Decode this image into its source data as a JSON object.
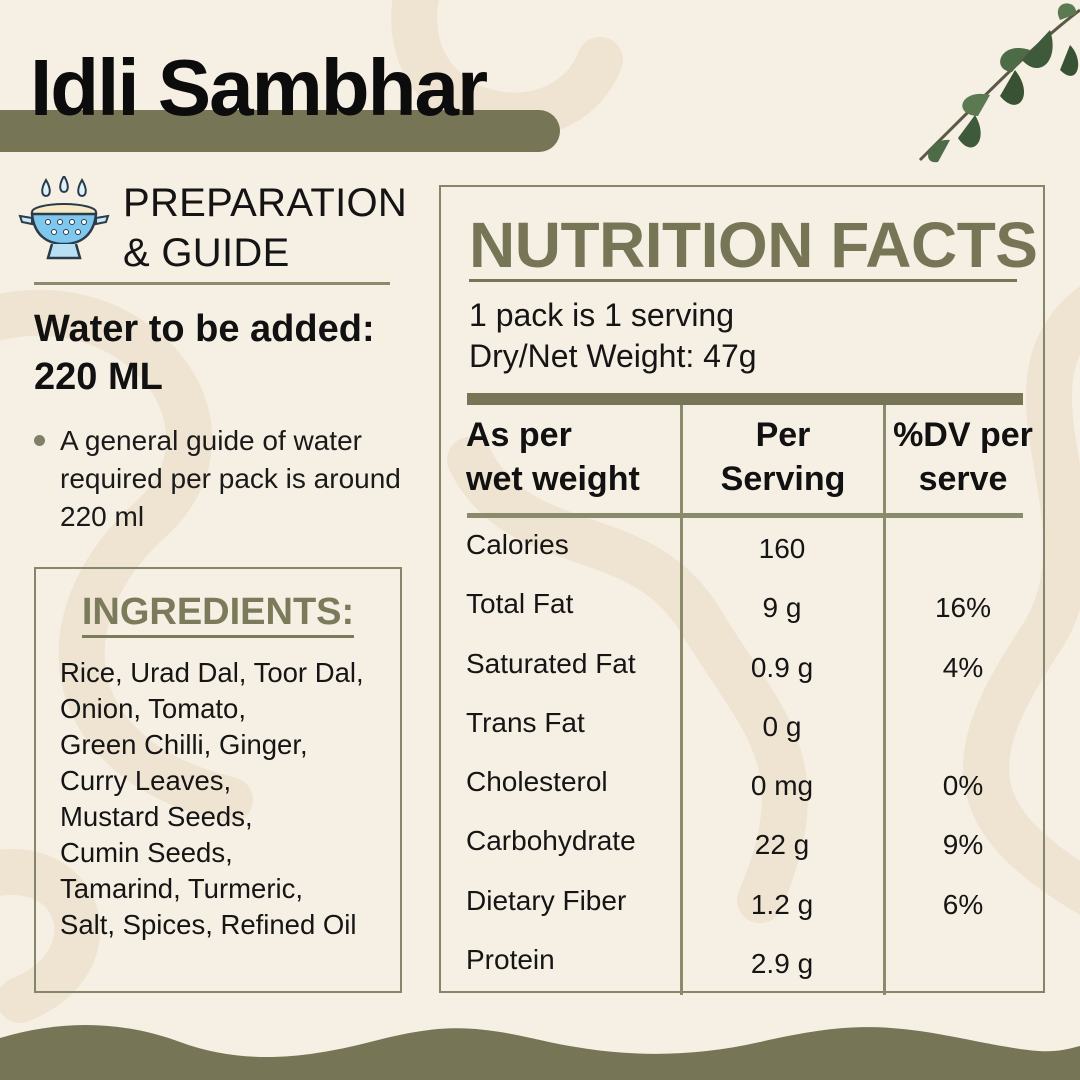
{
  "title": "Idli Sambhar",
  "preparation": {
    "heading_line1": "PREPARATION",
    "heading_line2": "& GUIDE",
    "water_line1": "Water to be added:",
    "water_line2": "220 ML",
    "guide_text": "A general guide of water required per pack is around 220 ml"
  },
  "ingredients": {
    "title": "INGREDIENTS:",
    "lines": [
      "Rice, Urad Dal, Toor Dal,",
      "Onion, Tomato,",
      "Green Chilli, Ginger,",
      "Curry Leaves,",
      "Mustard Seeds,",
      "Cumin Seeds,",
      "Tamarind, Turmeric,",
      "Salt, Spices, Refined Oil"
    ]
  },
  "nutrition": {
    "title": "NUTRITION FACTS",
    "serving_line1": "1 pack is 1 serving",
    "serving_line2": "Dry/Net Weight: 47g",
    "headers": [
      {
        "line1": "As per",
        "line2": "wet weight"
      },
      {
        "line1": "Per",
        "line2": "Serving"
      },
      {
        "line1": "%DV per",
        "line2": "serve"
      }
    ],
    "rows": [
      {
        "name": "Calories",
        "value": "160",
        "dv": ""
      },
      {
        "name": "Total Fat",
        "value": "9 g",
        "dv": "16%"
      },
      {
        "name": "Saturated Fat",
        "value": "0.9 g",
        "dv": "4%"
      },
      {
        "name": "Trans Fat",
        "value": "0 g",
        "dv": ""
      },
      {
        "name": "Cholesterol",
        "value": "0 mg",
        "dv": "0%"
      },
      {
        "name": "Carbohydrate",
        "value": "22 g",
        "dv": "9%"
      },
      {
        "name": "Dietary Fiber",
        "value": "1.2 g",
        "dv": "6%"
      },
      {
        "name": "Protein",
        "value": "2.9 g",
        "dv": ""
      }
    ]
  },
  "colors": {
    "background": "#f6efe3",
    "accent_olive": "#767656",
    "text_dark": "#111111"
  },
  "icons": [
    "strainer-water-icon",
    "leaves-decoration"
  ]
}
